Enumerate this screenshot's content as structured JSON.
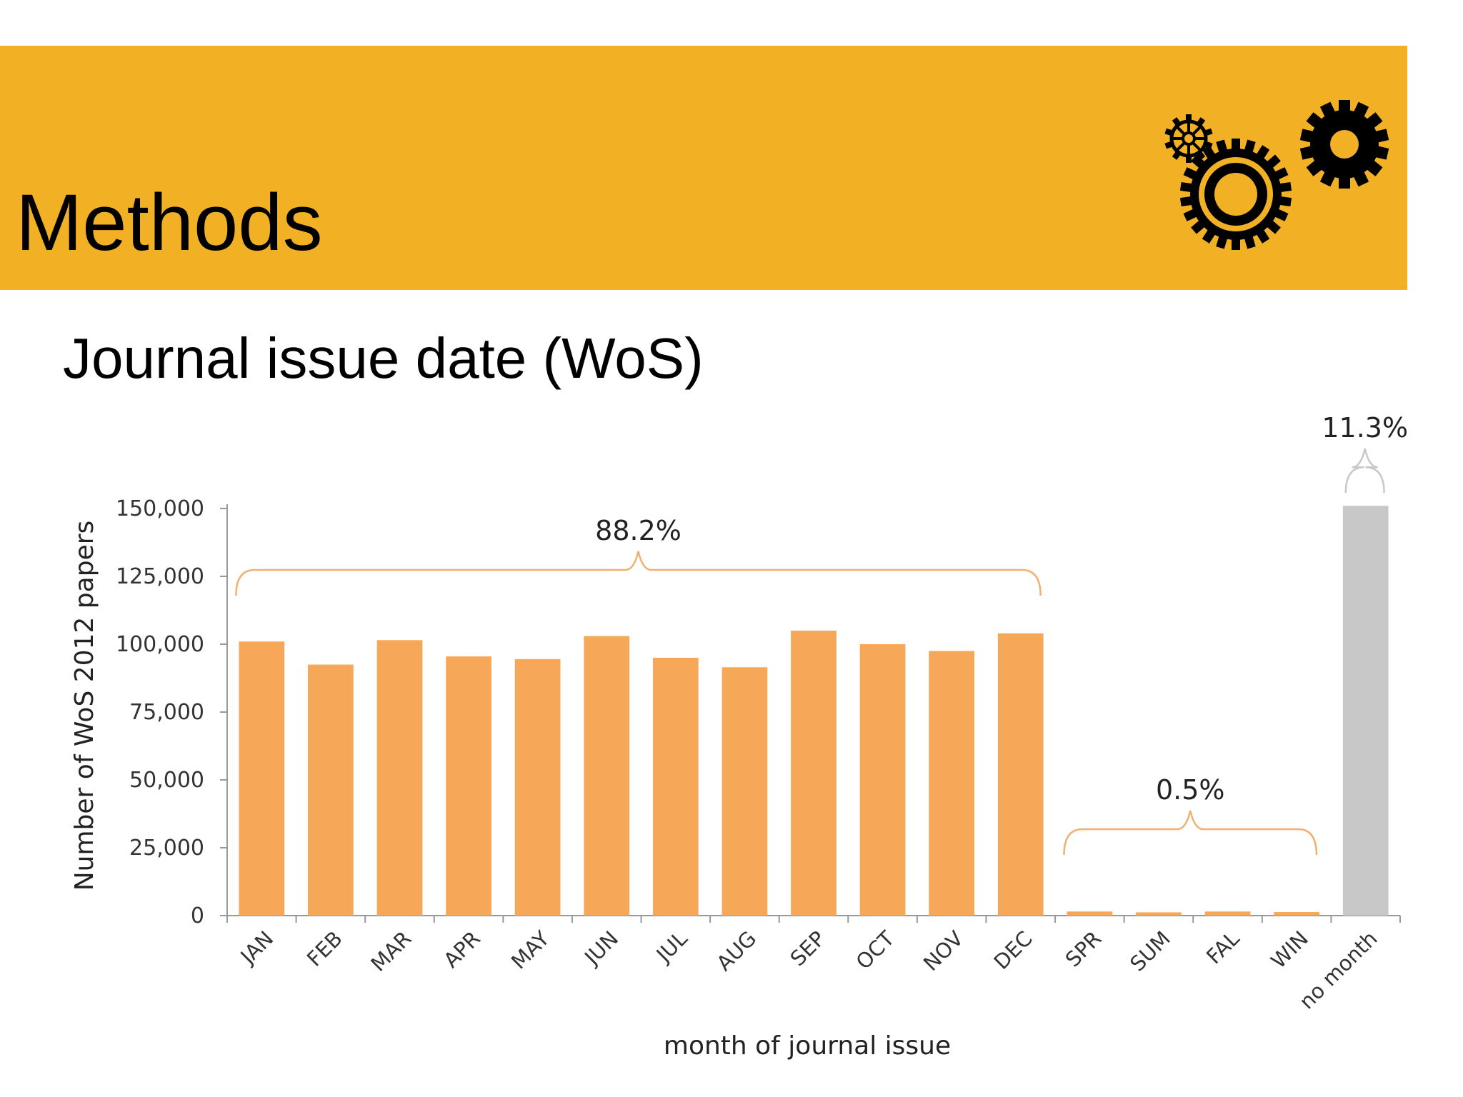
{
  "slide": {
    "title": "Methods",
    "subtitle": "Journal issue date (WoS)",
    "banner_color": "#f2b124",
    "icon": "gears-icon"
  },
  "chart_data": {
    "type": "bar",
    "title": "",
    "xlabel": "month of journal issue",
    "ylabel": "Number of WoS 2012 papers",
    "ylim": [
      0,
      150000
    ],
    "yticks": [
      0,
      25000,
      50000,
      75000,
      100000,
      125000,
      150000
    ],
    "ytick_labels": [
      "0",
      "25,000",
      "50,000",
      "75,000",
      "100,000",
      "125,000",
      "150,000"
    ],
    "grid": false,
    "categories": [
      "JAN",
      "FEB",
      "MAR",
      "APR",
      "MAY",
      "JUN",
      "JUL",
      "AUG",
      "SEP",
      "OCT",
      "NOV",
      "DEC",
      "SPR",
      "SUM",
      "FAL",
      "WIN",
      "no month"
    ],
    "values": [
      101000,
      92500,
      101500,
      95500,
      94500,
      103000,
      95000,
      91500,
      105000,
      100000,
      97500,
      104000,
      1500,
      1200,
      1500,
      1300,
      151000
    ],
    "bar_colors": [
      "#f6a858",
      "#f6a858",
      "#f6a858",
      "#f6a858",
      "#f6a858",
      "#f6a858",
      "#f6a858",
      "#f6a858",
      "#f6a858",
      "#f6a858",
      "#f6a858",
      "#f6a858",
      "#f6a858",
      "#f6a858",
      "#f6a858",
      "#f6a858",
      "#c9c8c9"
    ],
    "annotations": [
      {
        "label": "88.2%",
        "from": "JAN",
        "to": "DEC",
        "color": "#f0b070"
      },
      {
        "label": "0.5%",
        "from": "SPR",
        "to": "WIN",
        "color": "#f0b070"
      },
      {
        "label": "11.3%",
        "from": "no month",
        "to": "no month",
        "color": "#c9c8c9"
      }
    ]
  }
}
